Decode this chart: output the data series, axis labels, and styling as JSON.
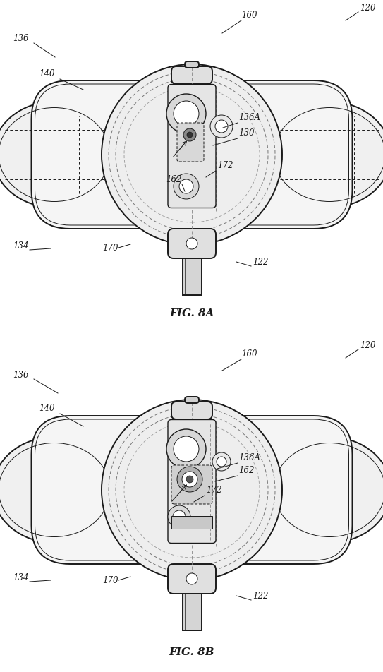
{
  "fig_width": 5.43,
  "fig_height": 9.53,
  "bg_color": "#ffffff",
  "line_color": "#1a1a1a",
  "dash_color": "#555555",
  "label_color": "#333333",
  "fig8a_label": "FIG. 8A",
  "fig8b_label": "FIG. 8B"
}
